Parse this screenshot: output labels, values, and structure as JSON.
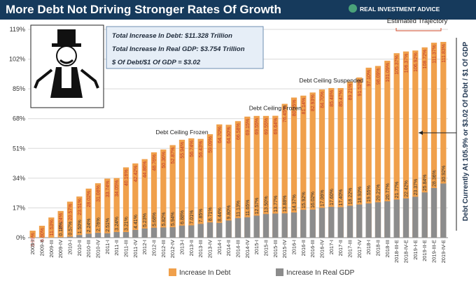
{
  "header": {
    "title": "More Debt Not Driving Stronger Rates Of Growth",
    "brand": "REAL INVESTMENT ADVICE"
  },
  "colors": {
    "debt": "#f0a04b",
    "gdp": "#8c8c8c",
    "header_bg": "#163a5c"
  },
  "chart_data": {
    "type": "bar",
    "title": "More Debt Not Driving Stronger Rates Of Growth",
    "ylim": [
      0,
      119
    ],
    "yticks": [
      "0%",
      "17%",
      "34%",
      "51%",
      "68%",
      "85%",
      "102%",
      "119%"
    ],
    "categories": [
      "2009-I",
      "2009-II",
      "2009-III",
      "2009-IV",
      "2010-I",
      "2010-II",
      "2010-III",
      "2010-IV",
      "2011-I",
      "2011-II",
      "2011-III",
      "2011-IV",
      "2012-I",
      "2012-II",
      "2012-III",
      "2012-IV",
      "2013-I",
      "2013-II",
      "2013-III",
      "2013-IV",
      "2014-I",
      "2014-II",
      "2014-III",
      "2014-IV",
      "2015-I",
      "2015-II",
      "2015-III",
      "2015-IV",
      "2016-I",
      "2016-II",
      "2016-III",
      "2016-IV",
      "2017-I",
      "2017-II",
      "2017-III",
      "2017-IV",
      "2018-I",
      "2018-II",
      "2018-III",
      "2018-III-E",
      "2018-IV-E",
      "2019-I-E",
      "2019-II-E",
      "2019-III-E",
      "2019-IV-E"
    ],
    "series": [
      {
        "name": "Increase In Debt",
        "labels": [
          "3.99%",
          "6.80%",
          "11.53%",
          "15.24%",
          "20.57%",
          "23.51%",
          "28.02%",
          "31.08%",
          "33.74%",
          "34.05%",
          "40.16%",
          "42.42%",
          "44.86%",
          "48.76%",
          "50.36%",
          "52.87%",
          "55.94%",
          "56.74%",
          "56.43%",
          "59.09%",
          "64.70%",
          "64.50%",
          "66.58%",
          "69.15%",
          "69.55%",
          "69.55%",
          "69.64%",
          "76.45%",
          "80.05%",
          "81.14%",
          "82.93%",
          "84.70%",
          "85.48%",
          "85.47%",
          "89.21%",
          "91.52%",
          "97.10%",
          "98.09%",
          "101.09%",
          "105.37%",
          "106.37%",
          "106.92%",
          "108.72%",
          "111.37%",
          "111.83%"
        ],
        "values": [
          3.99,
          6.8,
          11.53,
          15.24,
          20.57,
          23.51,
          28.02,
          31.08,
          33.74,
          34.05,
          40.16,
          42.42,
          44.86,
          48.76,
          50.36,
          52.87,
          55.94,
          56.74,
          56.43,
          59.09,
          64.7,
          64.5,
          66.58,
          69.15,
          69.55,
          69.55,
          69.64,
          76.45,
          80.05,
          81.14,
          82.93,
          84.7,
          85.48,
          85.47,
          89.21,
          91.52,
          97.1,
          98.09,
          101.09,
          105.37,
          106.37,
          106.92,
          108.72,
          111.37,
          111.83
        ]
      },
      {
        "name": "Increase In Real GDP",
        "labels": [
          "",
          "",
          "",
          "0.18%",
          "0.57%",
          "1.50%",
          "2.24%",
          "2.76%",
          "2.51%",
          "3.24%",
          "3.21%",
          "4.41%",
          "5.23%",
          "5.68%",
          "5.82%",
          "5.94%",
          "6.88%",
          "7.01%",
          "7.85%",
          "8.71%",
          "8.44%",
          "9.80%",
          "11.13%",
          "11.65%",
          "12.57%",
          "13.50%",
          "13.77%",
          "13.88%",
          "14.37%",
          "15.92%",
          "16.02%",
          "17.06%",
          "17.60%",
          "17.40%",
          "18.22%",
          "18.93%",
          "19.55%",
          "20.21%",
          "20.77%",
          "21.77%",
          "22.42%",
          "23.37%",
          "25.84%",
          "28.36%",
          "30.92%"
        ],
        "values": [
          0,
          0,
          0,
          0.18,
          0.57,
          1.5,
          2.24,
          2.76,
          2.51,
          3.24,
          3.21,
          4.41,
          5.23,
          5.68,
          5.82,
          5.94,
          6.88,
          7.01,
          7.85,
          8.71,
          8.44,
          9.8,
          11.13,
          11.65,
          12.57,
          13.5,
          13.77,
          13.88,
          14.37,
          15.92,
          16.02,
          17.06,
          17.6,
          17.4,
          18.22,
          18.93,
          19.55,
          20.21,
          20.77,
          21.77,
          22.42,
          23.37,
          25.84,
          28.36,
          30.92
        ]
      }
    ],
    "annotations": [
      {
        "text": "Debt Ceiling Frozen",
        "category": "2013-I"
      },
      {
        "text": "Debt Ceiling Frozen",
        "category": "2015-III"
      },
      {
        "text": "Debt Ceiling Suspended",
        "category": "2017-I"
      }
    ],
    "info_box": [
      "Total Increase In Debt:  $11.328 Trillion",
      "Total Increase In Real GDP:  $3.754 Trillion",
      "$ Of Debt/$1 Of GDP = $3.02"
    ],
    "estimated_label": "Estimated Trajectory",
    "side_note": "Debt Currently At 105.9% or $3.02 Of Debt / $1 Of GDP",
    "legend": [
      {
        "name": "Increase In Debt",
        "color": "#f0a04b"
      },
      {
        "name": "Increase In Real GDP",
        "color": "#8c8c8c"
      }
    ]
  }
}
